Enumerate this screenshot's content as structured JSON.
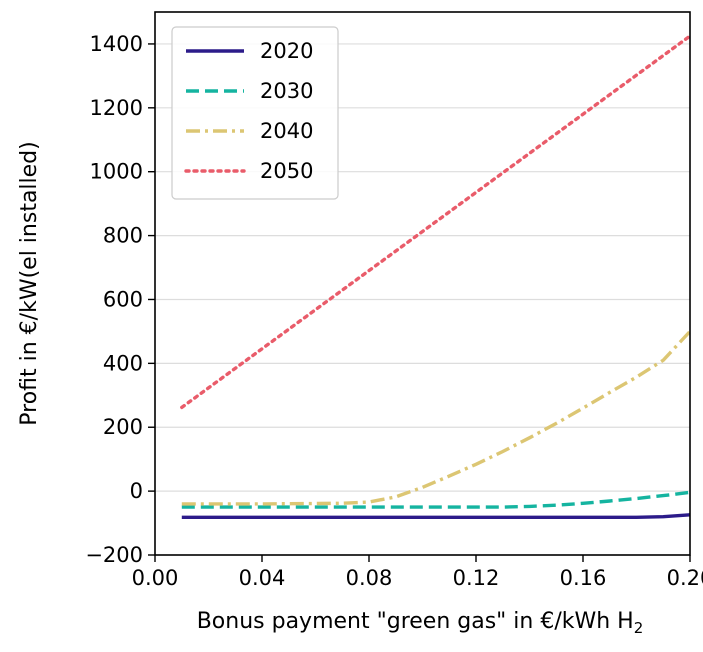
{
  "chart_data": {
    "type": "line",
    "title": "",
    "xlabel": "Bonus payment \"green gas\" in €/kWh H",
    "xlabel_subscript": "2",
    "ylabel": "Profit in €/kW(el installed)",
    "xlim": [
      0.0,
      0.2
    ],
    "ylim": [
      -200,
      1500
    ],
    "xticks": [
      0.0,
      0.04,
      0.08,
      0.12,
      0.16,
      0.2
    ],
    "xtick_labels": [
      "0.00",
      "0.04",
      "0.08",
      "0.12",
      "0.16",
      "0.20"
    ],
    "yticks": [
      -200,
      0,
      200,
      400,
      600,
      800,
      1000,
      1200,
      1400
    ],
    "ytick_labels": [
      "−200",
      "0",
      "200",
      "400",
      "600",
      "800",
      "1000",
      "1200",
      "1400"
    ],
    "grid": "horizontal",
    "legend_position": "top-left",
    "series": [
      {
        "name": "2020",
        "color": "#2c1b8a",
        "dash": "solid",
        "x": [
          0.01,
          0.05,
          0.1,
          0.15,
          0.18,
          0.19,
          0.2
        ],
        "y": [
          -82,
          -82,
          -82,
          -82,
          -82,
          -80,
          -74
        ]
      },
      {
        "name": "2030",
        "color": "#15b4a0",
        "dash": "dashed",
        "x": [
          0.01,
          0.06,
          0.1,
          0.13,
          0.14,
          0.15,
          0.16,
          0.17,
          0.18,
          0.19,
          0.2
        ],
        "y": [
          -50,
          -50,
          -50,
          -50,
          -48,
          -44,
          -38,
          -31,
          -23,
          -14,
          -4
        ]
      },
      {
        "name": "2040",
        "color": "#dcc673",
        "dash": "dashdot",
        "x": [
          0.01,
          0.04,
          0.07,
          0.08,
          0.09,
          0.1,
          0.11,
          0.12,
          0.13,
          0.14,
          0.15,
          0.16,
          0.17,
          0.18,
          0.19,
          0.2
        ],
        "y": [
          -40,
          -40,
          -38,
          -34,
          -18,
          12,
          47,
          84,
          124,
          167,
          212,
          260,
          309,
          357,
          410,
          500
        ]
      },
      {
        "name": "2050",
        "color": "#e95c6a",
        "dash": "dotted",
        "x": [
          0.01,
          0.2
        ],
        "y": [
          262,
          1425
        ]
      }
    ]
  }
}
